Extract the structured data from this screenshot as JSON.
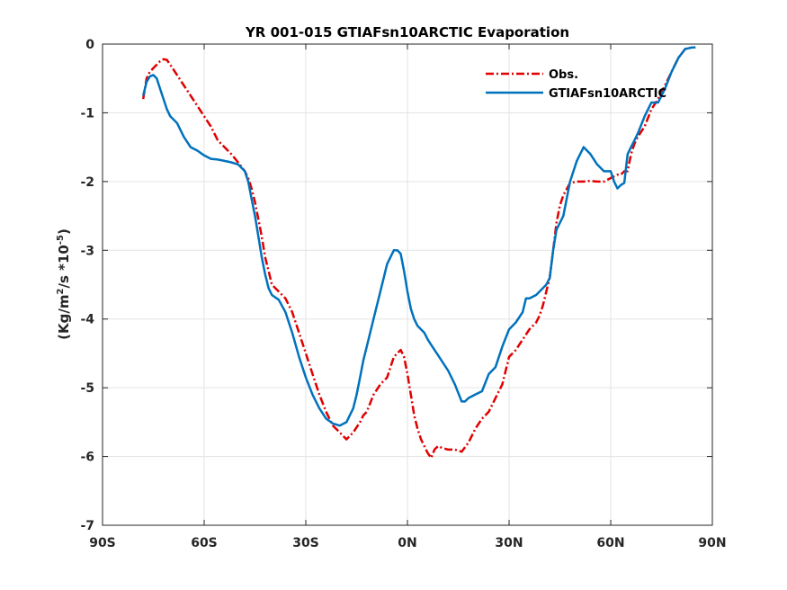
{
  "chart_data": {
    "type": "line",
    "title": "YR 001-015 GTIAFsn10ARCTIC Evaporation",
    "xlabel": "",
    "ylabel_parts": {
      "main": "(Kg/m",
      "sup1": "2",
      "mid": "/s *10",
      "sup2": "-5",
      "end": ")"
    },
    "xlim": [
      -90,
      90
    ],
    "ylim": [
      -7,
      0
    ],
    "xticks": [
      -90,
      -60,
      -30,
      0,
      30,
      60,
      90
    ],
    "xtick_labels": [
      "90S",
      "60S",
      "30S",
      "0N",
      "30N",
      "60N",
      "90N"
    ],
    "yticks": [
      0,
      -1,
      -2,
      -3,
      -4,
      -5,
      -6,
      -7
    ],
    "ytick_labels": [
      "0",
      "-1",
      "-2",
      "-3",
      "-4",
      "-5",
      "-6",
      "-7"
    ],
    "grid": true,
    "legend_position": "top-right",
    "series": [
      {
        "name": "Obs.",
        "color": "#e00000",
        "style": "dashdot",
        "x": [
          -78,
          -77,
          -76,
          -75,
          -74,
          -73,
          -72,
          -71,
          -70,
          -68,
          -66,
          -64,
          -62,
          -60,
          -58,
          -56,
          -54,
          -52,
          -50,
          -48,
          -47,
          -46,
          -45,
          -44,
          -43,
          -42,
          -41,
          -40,
          -38,
          -36,
          -34,
          -32,
          -30,
          -28,
          -26,
          -24,
          -22,
          -20,
          -18,
          -16,
          -14,
          -13,
          -12,
          -10,
          -8,
          -6,
          -4,
          -3,
          -2,
          -1,
          0,
          1,
          2,
          3,
          4,
          5,
          6,
          7,
          8,
          9,
          10,
          12,
          14,
          16,
          18,
          20,
          22,
          24,
          26,
          28,
          30,
          32,
          34,
          36,
          38,
          39,
          40,
          41,
          42,
          43,
          44,
          45,
          46,
          48,
          50,
          52,
          54,
          56,
          58,
          60,
          62,
          63,
          64,
          65,
          66,
          67,
          68,
          70,
          72,
          74,
          76,
          78,
          80,
          82,
          84,
          85
        ],
        "y": [
          -0.8,
          -0.5,
          -0.4,
          -0.35,
          -0.3,
          -0.25,
          -0.22,
          -0.23,
          -0.3,
          -0.45,
          -0.6,
          -0.75,
          -0.9,
          -1.05,
          -1.2,
          -1.4,
          -1.5,
          -1.6,
          -1.72,
          -1.85,
          -1.95,
          -2.1,
          -2.3,
          -2.55,
          -2.8,
          -3.1,
          -3.3,
          -3.5,
          -3.6,
          -3.7,
          -3.9,
          -4.2,
          -4.5,
          -4.8,
          -5.1,
          -5.35,
          -5.55,
          -5.65,
          -5.75,
          -5.65,
          -5.5,
          -5.4,
          -5.35,
          -5.1,
          -4.95,
          -4.85,
          -4.55,
          -4.5,
          -4.45,
          -4.55,
          -4.8,
          -5.1,
          -5.4,
          -5.6,
          -5.75,
          -5.85,
          -5.95,
          -6.02,
          -5.9,
          -5.85,
          -5.87,
          -5.9,
          -5.9,
          -5.93,
          -5.8,
          -5.6,
          -5.45,
          -5.35,
          -5.15,
          -4.95,
          -4.55,
          -4.45,
          -4.3,
          -4.15,
          -4.05,
          -3.95,
          -3.8,
          -3.6,
          -3.4,
          -3.0,
          -2.6,
          -2.35,
          -2.2,
          -2.02,
          -2.0,
          -2.0,
          -1.99,
          -2.0,
          -2.0,
          -1.95,
          -1.9,
          -1.9,
          -1.85,
          -1.85,
          -1.6,
          -1.45,
          -1.35,
          -1.2,
          -0.95,
          -0.8,
          -0.6,
          -0.4,
          -0.2,
          -0.07,
          -0.05,
          -0.05
        ]
      },
      {
        "name": "GTIAFsn10ARCTIC",
        "color": "#0072bd",
        "style": "solid",
        "x": [
          -78,
          -77,
          -76,
          -75,
          -74,
          -73,
          -72,
          -71,
          -70,
          -68,
          -66,
          -64,
          -62,
          -60,
          -58,
          -56,
          -54,
          -52,
          -50,
          -48,
          -47,
          -46,
          -45,
          -44,
          -43,
          -42,
          -41,
          -40,
          -38,
          -36,
          -34,
          -32,
          -30,
          -28,
          -26,
          -24,
          -22,
          -20,
          -18,
          -16,
          -15,
          -14,
          -13,
          -12,
          -10,
          -8,
          -6,
          -4,
          -3,
          -2,
          -1,
          0,
          1,
          2,
          3,
          4,
          5,
          6,
          8,
          10,
          12,
          14,
          16,
          17,
          18,
          20,
          22,
          24,
          26,
          28,
          30,
          32,
          34,
          35,
          36,
          38,
          39,
          40,
          41,
          42,
          43,
          44,
          46,
          48,
          50,
          52,
          54,
          56,
          58,
          60,
          61,
          62,
          63,
          64,
          65,
          66,
          67,
          68,
          70,
          72,
          74,
          76,
          78,
          80,
          82,
          84,
          85
        ],
        "y": [
          -0.75,
          -0.55,
          -0.47,
          -0.45,
          -0.5,
          -0.65,
          -0.8,
          -0.95,
          -1.05,
          -1.15,
          -1.35,
          -1.5,
          -1.55,
          -1.62,
          -1.67,
          -1.68,
          -1.7,
          -1.72,
          -1.75,
          -1.85,
          -2.0,
          -2.25,
          -2.5,
          -2.8,
          -3.1,
          -3.35,
          -3.55,
          -3.65,
          -3.72,
          -3.9,
          -4.2,
          -4.55,
          -4.85,
          -5.1,
          -5.3,
          -5.45,
          -5.52,
          -5.55,
          -5.5,
          -5.3,
          -5.1,
          -4.85,
          -4.6,
          -4.4,
          -4.0,
          -3.6,
          -3.2,
          -3.0,
          -3.0,
          -3.05,
          -3.3,
          -3.6,
          -3.85,
          -4.0,
          -4.1,
          -4.15,
          -4.2,
          -4.3,
          -4.45,
          -4.6,
          -4.75,
          -4.95,
          -5.2,
          -5.2,
          -5.15,
          -5.1,
          -5.05,
          -4.8,
          -4.7,
          -4.4,
          -4.15,
          -4.05,
          -3.9,
          -3.7,
          -3.7,
          -3.65,
          -3.6,
          -3.55,
          -3.5,
          -3.4,
          -3.0,
          -2.7,
          -2.5,
          -2.0,
          -1.7,
          -1.5,
          -1.6,
          -1.75,
          -1.85,
          -1.85,
          -2.0,
          -2.1,
          -2.05,
          -2.02,
          -1.6,
          -1.5,
          -1.4,
          -1.3,
          -1.05,
          -0.85,
          -0.85,
          -0.65,
          -0.4,
          -0.2,
          -0.07,
          -0.05,
          -0.05
        ]
      }
    ]
  }
}
